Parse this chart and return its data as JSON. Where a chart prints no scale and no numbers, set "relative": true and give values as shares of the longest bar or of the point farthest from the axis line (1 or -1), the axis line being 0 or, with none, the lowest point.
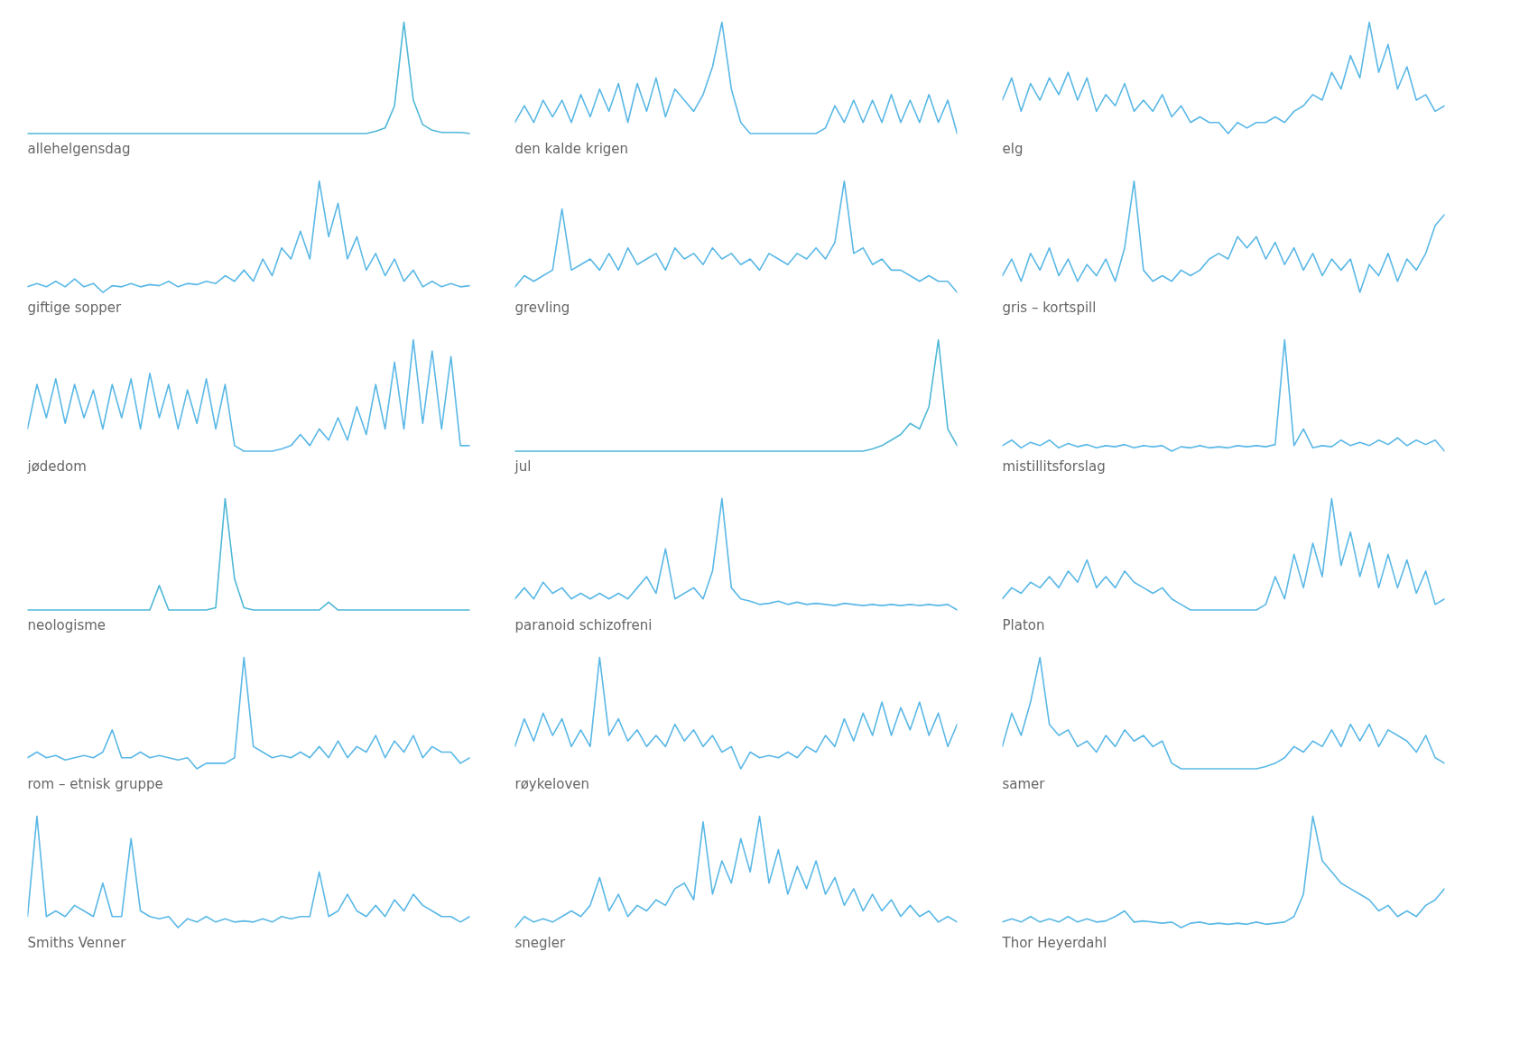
{
  "chart_data": [
    {
      "type": "line",
      "xlabel": "allehelgensdag",
      "relative": true,
      "tick_labels": false,
      "color": "#4fb8d6",
      "categories": [
        null,
        null,
        null,
        null,
        null,
        null,
        null,
        null,
        null,
        null,
        null,
        null,
        null,
        null,
        null,
        null,
        null,
        null,
        null,
        null,
        null,
        null,
        null,
        null,
        null,
        null,
        null,
        null,
        null,
        null,
        null,
        null,
        null,
        null,
        null,
        null,
        null,
        null,
        null,
        null,
        null,
        null,
        null,
        null,
        null,
        null,
        null,
        null
      ],
      "values": [
        0,
        0,
        0,
        0,
        0,
        0,
        0,
        0,
        0,
        0,
        0,
        0,
        0,
        0,
        0,
        0,
        0,
        0,
        0,
        0,
        0,
        0,
        0,
        0,
        0,
        0,
        0,
        0,
        0,
        0,
        0,
        0,
        0,
        0,
        0,
        0,
        0,
        0.02,
        0.05,
        0.25,
        1.0,
        0.3,
        0.08,
        0.03,
        0.01,
        0.01,
        0.01,
        0
      ]
    },
    {
      "type": "line",
      "xlabel": "den kalde krigen",
      "relative": true,
      "tick_labels": false,
      "color": "#5ab8e6",
      "categories": [
        null,
        null,
        null,
        null,
        null,
        null,
        null,
        null,
        null,
        null,
        null,
        null,
        null,
        null,
        null,
        null,
        null,
        null,
        null,
        null,
        null,
        null,
        null,
        null,
        null,
        null,
        null,
        null,
        null,
        null,
        null,
        null,
        null,
        null,
        null,
        null,
        null,
        null,
        null,
        null,
        null,
        null,
        null,
        null,
        null,
        null,
        null,
        null
      ],
      "values": [
        0.1,
        0.25,
        0.1,
        0.3,
        0.15,
        0.3,
        0.1,
        0.35,
        0.15,
        0.4,
        0.2,
        0.45,
        0.1,
        0.45,
        0.2,
        0.5,
        0.15,
        0.4,
        0.3,
        0.2,
        0.35,
        0.6,
        1.0,
        0.4,
        0.1,
        0,
        0,
        0,
        0,
        0,
        0,
        0,
        0,
        0.05,
        0.25,
        0.1,
        0.3,
        0.1,
        0.3,
        0.1,
        0.35,
        0.1,
        0.3,
        0.1,
        0.35,
        0.1,
        0.3,
        0
      ]
    },
    {
      "type": "line",
      "xlabel": "elg",
      "relative": true,
      "tick_labels": false,
      "color": "#5ab8e6",
      "categories": [
        null,
        null,
        null,
        null,
        null,
        null,
        null,
        null,
        null,
        null,
        null,
        null,
        null,
        null,
        null,
        null,
        null,
        null,
        null,
        null,
        null,
        null,
        null,
        null,
        null,
        null,
        null,
        null,
        null,
        null,
        null,
        null,
        null,
        null,
        null,
        null,
        null,
        null,
        null,
        null,
        null,
        null,
        null,
        null,
        null,
        null,
        null,
        null
      ],
      "values": [
        0.3,
        0.5,
        0.2,
        0.45,
        0.3,
        0.5,
        0.35,
        0.55,
        0.3,
        0.5,
        0.2,
        0.35,
        0.25,
        0.45,
        0.2,
        0.3,
        0.2,
        0.35,
        0.15,
        0.25,
        0.1,
        0.15,
        0.1,
        0.1,
        0,
        0.1,
        0.05,
        0.1,
        0.1,
        0.15,
        0.1,
        0.2,
        0.25,
        0.35,
        0.3,
        0.55,
        0.4,
        0.7,
        0.5,
        1.0,
        0.55,
        0.8,
        0.4,
        0.6,
        0.3,
        0.35,
        0.2,
        0.25
      ]
    },
    {
      "type": "line",
      "xlabel": "giftige sopper",
      "relative": true,
      "tick_labels": false,
      "color": "#5ab8e6",
      "categories": [
        null,
        null,
        null,
        null,
        null,
        null,
        null,
        null,
        null,
        null,
        null,
        null,
        null,
        null,
        null,
        null,
        null,
        null,
        null,
        null,
        null,
        null,
        null,
        null,
        null,
        null,
        null,
        null,
        null,
        null,
        null,
        null,
        null,
        null,
        null,
        null,
        null,
        null,
        null,
        null,
        null,
        null,
        null,
        null,
        null,
        null,
        null,
        null
      ],
      "values": [
        0.05,
        0.08,
        0.05,
        0.1,
        0.05,
        0.12,
        0.05,
        0.08,
        0,
        0.06,
        0.05,
        0.08,
        0.05,
        0.07,
        0.06,
        0.1,
        0.05,
        0.08,
        0.07,
        0.1,
        0.08,
        0.15,
        0.1,
        0.2,
        0.1,
        0.3,
        0.15,
        0.4,
        0.3,
        0.55,
        0.3,
        1.0,
        0.5,
        0.8,
        0.3,
        0.5,
        0.2,
        0.35,
        0.15,
        0.3,
        0.1,
        0.2,
        0.05,
        0.1,
        0.05,
        0.08,
        0.05,
        0.06
      ]
    },
    {
      "type": "line",
      "xlabel": "grevling",
      "relative": true,
      "tick_labels": false,
      "color": "#5ab8e6",
      "categories": [
        null,
        null,
        null,
        null,
        null,
        null,
        null,
        null,
        null,
        null,
        null,
        null,
        null,
        null,
        null,
        null,
        null,
        null,
        null,
        null,
        null,
        null,
        null,
        null,
        null,
        null,
        null,
        null,
        null,
        null,
        null,
        null,
        null,
        null,
        null,
        null,
        null,
        null,
        null,
        null,
        null,
        null,
        null,
        null,
        null,
        null,
        null,
        null
      ],
      "values": [
        0.05,
        0.15,
        0.1,
        0.15,
        0.2,
        0.75,
        0.2,
        0.25,
        0.3,
        0.2,
        0.35,
        0.2,
        0.4,
        0.25,
        0.3,
        0.35,
        0.2,
        0.4,
        0.3,
        0.35,
        0.25,
        0.4,
        0.3,
        0.35,
        0.25,
        0.3,
        0.2,
        0.35,
        0.3,
        0.25,
        0.35,
        0.3,
        0.4,
        0.3,
        0.45,
        1.0,
        0.35,
        0.4,
        0.25,
        0.3,
        0.2,
        0.2,
        0.15,
        0.1,
        0.15,
        0.1,
        0.1,
        0
      ]
    },
    {
      "type": "line",
      "xlabel": "gris – kortspill",
      "relative": true,
      "tick_labels": false,
      "color": "#5ab8e6",
      "categories": [
        null,
        null,
        null,
        null,
        null,
        null,
        null,
        null,
        null,
        null,
        null,
        null,
        null,
        null,
        null,
        null,
        null,
        null,
        null,
        null,
        null,
        null,
        null,
        null,
        null,
        null,
        null,
        null,
        null,
        null,
        null,
        null,
        null,
        null,
        null,
        null,
        null,
        null,
        null,
        null,
        null,
        null,
        null,
        null,
        null,
        null,
        null,
        null
      ],
      "values": [
        0.15,
        0.3,
        0.1,
        0.35,
        0.2,
        0.4,
        0.15,
        0.3,
        0.1,
        0.25,
        0.15,
        0.3,
        0.1,
        0.4,
        1.0,
        0.2,
        0.1,
        0.15,
        0.1,
        0.2,
        0.15,
        0.2,
        0.3,
        0.35,
        0.3,
        0.5,
        0.4,
        0.5,
        0.3,
        0.45,
        0.25,
        0.4,
        0.2,
        0.35,
        0.15,
        0.3,
        0.2,
        0.3,
        0,
        0.25,
        0.15,
        0.35,
        0.1,
        0.3,
        0.2,
        0.35,
        0.6,
        0.7
      ]
    },
    {
      "type": "line",
      "xlabel": "jødedom",
      "relative": true,
      "tick_labels": false,
      "color": "#5ab8e6",
      "categories": [
        null,
        null,
        null,
        null,
        null,
        null,
        null,
        null,
        null,
        null,
        null,
        null,
        null,
        null,
        null,
        null,
        null,
        null,
        null,
        null,
        null,
        null,
        null,
        null,
        null,
        null,
        null,
        null,
        null,
        null,
        null,
        null,
        null,
        null,
        null,
        null,
        null,
        null,
        null,
        null,
        null,
        null,
        null,
        null,
        null,
        null,
        null,
        null
      ],
      "values": [
        0.2,
        0.6,
        0.3,
        0.65,
        0.25,
        0.6,
        0.3,
        0.55,
        0.2,
        0.6,
        0.3,
        0.65,
        0.2,
        0.7,
        0.3,
        0.6,
        0.2,
        0.55,
        0.25,
        0.65,
        0.2,
        0.6,
        0.05,
        0,
        0,
        0,
        0,
        0.02,
        0.05,
        0.15,
        0.05,
        0.2,
        0.1,
        0.3,
        0.1,
        0.4,
        0.15,
        0.6,
        0.2,
        0.8,
        0.2,
        1.0,
        0.25,
        0.9,
        0.2,
        0.85,
        0.05,
        0.05
      ]
    },
    {
      "type": "line",
      "xlabel": "jul",
      "relative": true,
      "tick_labels": false,
      "color": "#4fb8d6",
      "categories": [
        null,
        null,
        null,
        null,
        null,
        null,
        null,
        null,
        null,
        null,
        null,
        null,
        null,
        null,
        null,
        null,
        null,
        null,
        null,
        null,
        null,
        null,
        null,
        null,
        null,
        null,
        null,
        null,
        null,
        null,
        null,
        null,
        null,
        null,
        null,
        null,
        null,
        null,
        null,
        null,
        null,
        null,
        null,
        null,
        null,
        null,
        null,
        null
      ],
      "values": [
        0,
        0,
        0,
        0,
        0,
        0,
        0,
        0,
        0,
        0,
        0,
        0,
        0,
        0,
        0,
        0,
        0,
        0,
        0,
        0,
        0,
        0,
        0,
        0,
        0,
        0,
        0,
        0,
        0,
        0,
        0,
        0,
        0,
        0,
        0,
        0,
        0,
        0,
        0.02,
        0.05,
        0.1,
        0.15,
        0.25,
        0.2,
        0.4,
        1.0,
        0.2,
        0.05
      ]
    },
    {
      "type": "line",
      "xlabel": "mistillitsforslag",
      "relative": true,
      "tick_labels": false,
      "color": "#5ab8e6",
      "categories": [
        null,
        null,
        null,
        null,
        null,
        null,
        null,
        null,
        null,
        null,
        null,
        null,
        null,
        null,
        null,
        null,
        null,
        null,
        null,
        null,
        null,
        null,
        null,
        null,
        null,
        null,
        null,
        null,
        null,
        null,
        null,
        null,
        null,
        null,
        null,
        null,
        null,
        null,
        null,
        null,
        null,
        null,
        null,
        null,
        null,
        null,
        null,
        null
      ],
      "values": [
        0.05,
        0.1,
        0.03,
        0.08,
        0.05,
        0.1,
        0.03,
        0.07,
        0.04,
        0.06,
        0.03,
        0.05,
        0.04,
        0.06,
        0.03,
        0.05,
        0.04,
        0.05,
        0,
        0.04,
        0.03,
        0.05,
        0.03,
        0.04,
        0.03,
        0.05,
        0.04,
        0.05,
        0.04,
        0.06,
        1.0,
        0.05,
        0.2,
        0.03,
        0.05,
        0.04,
        0.1,
        0.05,
        0.08,
        0.05,
        0.1,
        0.06,
        0.12,
        0.05,
        0.1,
        0.06,
        0.1,
        0
      ]
    },
    {
      "type": "line",
      "xlabel": "neologisme",
      "relative": true,
      "tick_labels": false,
      "color": "#4fb8d6",
      "categories": [
        null,
        null,
        null,
        null,
        null,
        null,
        null,
        null,
        null,
        null,
        null,
        null,
        null,
        null,
        null,
        null,
        null,
        null,
        null,
        null,
        null,
        null,
        null,
        null,
        null,
        null,
        null,
        null,
        null,
        null,
        null,
        null,
        null,
        null,
        null,
        null,
        null,
        null,
        null,
        null,
        null,
        null,
        null,
        null,
        null,
        null,
        null,
        null
      ],
      "values": [
        0,
        0,
        0,
        0,
        0,
        0,
        0,
        0,
        0,
        0,
        0,
        0,
        0,
        0,
        0.22,
        0,
        0,
        0,
        0,
        0,
        0.02,
        1.0,
        0.28,
        0.02,
        0,
        0,
        0,
        0,
        0,
        0,
        0,
        0,
        0.07,
        0,
        0,
        0,
        0,
        0,
        0,
        0,
        0,
        0,
        0,
        0,
        0,
        0,
        0,
        0
      ]
    },
    {
      "type": "line",
      "xlabel": "paranoid schizofreni",
      "relative": true,
      "tick_labels": false,
      "color": "#5ab8e6",
      "categories": [
        null,
        null,
        null,
        null,
        null,
        null,
        null,
        null,
        null,
        null,
        null,
        null,
        null,
        null,
        null,
        null,
        null,
        null,
        null,
        null,
        null,
        null,
        null,
        null,
        null,
        null,
        null,
        null,
        null,
        null,
        null,
        null,
        null,
        null,
        null,
        null,
        null,
        null,
        null,
        null,
        null,
        null,
        null,
        null,
        null,
        null,
        null,
        null
      ],
      "values": [
        0.1,
        0.2,
        0.1,
        0.25,
        0.15,
        0.2,
        0.1,
        0.15,
        0.1,
        0.15,
        0.1,
        0.15,
        0.1,
        0.2,
        0.3,
        0.15,
        0.55,
        0.1,
        0.15,
        0.2,
        0.1,
        0.35,
        1.0,
        0.2,
        0.1,
        0.08,
        0.05,
        0.06,
        0.08,
        0.05,
        0.07,
        0.05,
        0.06,
        0.05,
        0.04,
        0.06,
        0.05,
        0.04,
        0.05,
        0.04,
        0.05,
        0.04,
        0.05,
        0.04,
        0.05,
        0.04,
        0.05,
        0
      ]
    },
    {
      "type": "line",
      "xlabel": "Platon",
      "relative": true,
      "tick_labels": false,
      "color": "#5ab8e6",
      "categories": [
        null,
        null,
        null,
        null,
        null,
        null,
        null,
        null,
        null,
        null,
        null,
        null,
        null,
        null,
        null,
        null,
        null,
        null,
        null,
        null,
        null,
        null,
        null,
        null,
        null,
        null,
        null,
        null,
        null,
        null,
        null,
        null,
        null,
        null,
        null,
        null,
        null,
        null,
        null,
        null,
        null,
        null,
        null,
        null,
        null,
        null,
        null,
        null
      ],
      "values": [
        0.1,
        0.2,
        0.15,
        0.25,
        0.2,
        0.3,
        0.2,
        0.35,
        0.25,
        0.45,
        0.2,
        0.3,
        0.2,
        0.35,
        0.25,
        0.2,
        0.15,
        0.2,
        0.1,
        0.05,
        0,
        0,
        0,
        0,
        0,
        0,
        0,
        0,
        0.05,
        0.3,
        0.1,
        0.5,
        0.2,
        0.6,
        0.3,
        1.0,
        0.4,
        0.7,
        0.3,
        0.6,
        0.2,
        0.5,
        0.2,
        0.45,
        0.15,
        0.35,
        0.05,
        0.1
      ]
    },
    {
      "type": "line",
      "xlabel": "rom – etnisk gruppe",
      "relative": true,
      "tick_labels": false,
      "color": "#5ab8e6",
      "categories": [
        null,
        null,
        null,
        null,
        null,
        null,
        null,
        null,
        null,
        null,
        null,
        null,
        null,
        null,
        null,
        null,
        null,
        null,
        null,
        null,
        null,
        null,
        null,
        null,
        null,
        null,
        null,
        null,
        null,
        null,
        null,
        null,
        null,
        null,
        null,
        null,
        null,
        null,
        null,
        null,
        null,
        null,
        null,
        null,
        null,
        null,
        null,
        null
      ],
      "values": [
        0.1,
        0.15,
        0.1,
        0.12,
        0.08,
        0.1,
        0.12,
        0.1,
        0.15,
        0.35,
        0.1,
        0.1,
        0.15,
        0.1,
        0.12,
        0.1,
        0.08,
        0.1,
        0,
        0.05,
        0.05,
        0.05,
        0.1,
        1.0,
        0.2,
        0.15,
        0.1,
        0.12,
        0.1,
        0.15,
        0.1,
        0.2,
        0.1,
        0.25,
        0.1,
        0.2,
        0.15,
        0.3,
        0.1,
        0.25,
        0.15,
        0.3,
        0.1,
        0.2,
        0.15,
        0.15,
        0.05,
        0.1
      ]
    },
    {
      "type": "line",
      "xlabel": "røykeloven",
      "relative": true,
      "tick_labels": false,
      "color": "#5ab8e6",
      "categories": [
        null,
        null,
        null,
        null,
        null,
        null,
        null,
        null,
        null,
        null,
        null,
        null,
        null,
        null,
        null,
        null,
        null,
        null,
        null,
        null,
        null,
        null,
        null,
        null,
        null,
        null,
        null,
        null,
        null,
        null,
        null,
        null,
        null,
        null,
        null,
        null,
        null,
        null,
        null,
        null,
        null,
        null,
        null,
        null,
        null,
        null,
        null,
        null
      ],
      "values": [
        0.2,
        0.45,
        0.25,
        0.5,
        0.3,
        0.45,
        0.2,
        0.35,
        0.2,
        1.0,
        0.3,
        0.45,
        0.25,
        0.35,
        0.2,
        0.3,
        0.2,
        0.4,
        0.25,
        0.35,
        0.2,
        0.3,
        0.15,
        0.2,
        0,
        0.15,
        0.1,
        0.12,
        0.1,
        0.15,
        0.1,
        0.2,
        0.15,
        0.3,
        0.2,
        0.45,
        0.25,
        0.5,
        0.3,
        0.6,
        0.3,
        0.55,
        0.35,
        0.6,
        0.3,
        0.5,
        0.2,
        0.4
      ]
    },
    {
      "type": "line",
      "xlabel": "samer",
      "relative": true,
      "tick_labels": false,
      "color": "#5ab8e6",
      "categories": [
        null,
        null,
        null,
        null,
        null,
        null,
        null,
        null,
        null,
        null,
        null,
        null,
        null,
        null,
        null,
        null,
        null,
        null,
        null,
        null,
        null,
        null,
        null,
        null,
        null,
        null,
        null,
        null,
        null,
        null,
        null,
        null,
        null,
        null,
        null,
        null,
        null,
        null,
        null,
        null,
        null,
        null,
        null,
        null,
        null,
        null,
        null,
        null
      ],
      "values": [
        0.2,
        0.5,
        0.3,
        0.6,
        1.0,
        0.4,
        0.3,
        0.35,
        0.2,
        0.25,
        0.15,
        0.3,
        0.2,
        0.35,
        0.25,
        0.3,
        0.2,
        0.25,
        0.05,
        0,
        0,
        0,
        0,
        0,
        0,
        0,
        0,
        0,
        0.02,
        0.05,
        0.1,
        0.2,
        0.15,
        0.25,
        0.2,
        0.35,
        0.2,
        0.4,
        0.25,
        0.4,
        0.2,
        0.35,
        0.3,
        0.25,
        0.15,
        0.3,
        0.1,
        0.05
      ]
    },
    {
      "type": "line",
      "xlabel": "Smiths Venner",
      "relative": true,
      "tick_labels": false,
      "color": "#5ab8e6",
      "categories": [
        null,
        null,
        null,
        null,
        null,
        null,
        null,
        null,
        null,
        null,
        null,
        null,
        null,
        null,
        null,
        null,
        null,
        null,
        null,
        null,
        null,
        null,
        null,
        null,
        null,
        null,
        null,
        null,
        null,
        null,
        null,
        null,
        null,
        null,
        null,
        null,
        null,
        null,
        null,
        null,
        null,
        null,
        null,
        null,
        null,
        null,
        null,
        null
      ],
      "values": [
        0.1,
        1.0,
        0.1,
        0.15,
        0.1,
        0.2,
        0.15,
        0.1,
        0.4,
        0.1,
        0.1,
        0.8,
        0.15,
        0.1,
        0.08,
        0.1,
        0,
        0.08,
        0.05,
        0.1,
        0.05,
        0.08,
        0.05,
        0.06,
        0.05,
        0.08,
        0.05,
        0.1,
        0.08,
        0.1,
        0.1,
        0.5,
        0.1,
        0.15,
        0.3,
        0.15,
        0.1,
        0.2,
        0.1,
        0.25,
        0.15,
        0.3,
        0.2,
        0.15,
        0.1,
        0.1,
        0.05,
        0.1
      ]
    },
    {
      "type": "line",
      "xlabel": "snegler",
      "relative": true,
      "tick_labels": false,
      "color": "#5ab8e6",
      "categories": [
        null,
        null,
        null,
        null,
        null,
        null,
        null,
        null,
        null,
        null,
        null,
        null,
        null,
        null,
        null,
        null,
        null,
        null,
        null,
        null,
        null,
        null,
        null,
        null,
        null,
        null,
        null,
        null,
        null,
        null,
        null,
        null,
        null,
        null,
        null,
        null,
        null,
        null,
        null,
        null,
        null,
        null,
        null,
        null,
        null,
        null,
        null,
        null
      ],
      "values": [
        0,
        0.1,
        0.05,
        0.08,
        0.05,
        0.1,
        0.15,
        0.1,
        0.2,
        0.45,
        0.15,
        0.3,
        0.1,
        0.2,
        0.15,
        0.25,
        0.2,
        0.35,
        0.4,
        0.25,
        0.95,
        0.3,
        0.6,
        0.4,
        0.8,
        0.5,
        1.0,
        0.4,
        0.7,
        0.3,
        0.55,
        0.35,
        0.6,
        0.3,
        0.45,
        0.2,
        0.35,
        0.15,
        0.3,
        0.15,
        0.25,
        0.1,
        0.2,
        0.1,
        0.15,
        0.05,
        0.1,
        0.05
      ]
    },
    {
      "type": "line",
      "xlabel": "Thor Heyerdahl",
      "relative": true,
      "tick_labels": false,
      "color": "#5ab8e6",
      "categories": [
        null,
        null,
        null,
        null,
        null,
        null,
        null,
        null,
        null,
        null,
        null,
        null,
        null,
        null,
        null,
        null,
        null,
        null,
        null,
        null,
        null,
        null,
        null,
        null,
        null,
        null,
        null,
        null,
        null,
        null,
        null,
        null,
        null,
        null,
        null,
        null,
        null,
        null,
        null,
        null,
        null,
        null,
        null,
        null,
        null,
        null,
        null,
        null
      ],
      "values": [
        0.05,
        0.08,
        0.05,
        0.1,
        0.05,
        0.08,
        0.05,
        0.1,
        0.05,
        0.08,
        0.05,
        0.06,
        0.1,
        0.15,
        0.05,
        0.06,
        0.05,
        0.04,
        0.05,
        0,
        0.04,
        0.05,
        0.03,
        0.04,
        0.03,
        0.04,
        0.03,
        0.05,
        0.03,
        0.04,
        0.05,
        0.1,
        0.3,
        1.0,
        0.6,
        0.5,
        0.4,
        0.35,
        0.3,
        0.25,
        0.15,
        0.2,
        0.1,
        0.15,
        0.1,
        0.2,
        0.25,
        0.35
      ]
    }
  ]
}
